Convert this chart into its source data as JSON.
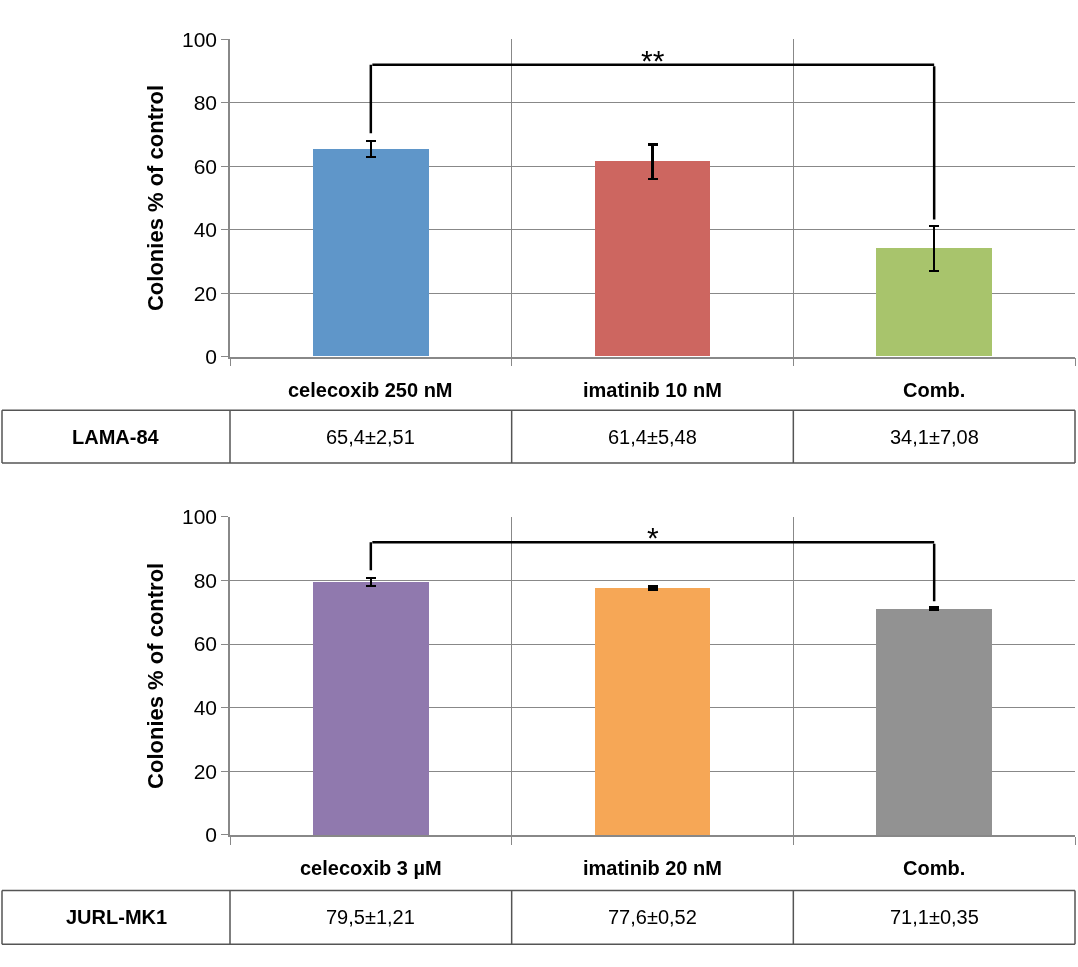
{
  "chart_data": [
    {
      "type": "bar",
      "ylabel": "Colonies % of control",
      "categories": [
        "celecoxib 250 nM",
        "imatinib 10 nM",
        "Comb."
      ],
      "ylim": [
        0,
        100
      ],
      "yticks": [
        0,
        20,
        40,
        60,
        80,
        100
      ],
      "grid": true,
      "series": [
        {
          "name": "LAMA-84",
          "colors": [
            "#5f96c9",
            "#cd6660",
            "#a8c46c"
          ],
          "values": [
            65.4,
            61.4,
            34.1
          ],
          "errors": [
            2.51,
            5.48,
            7.08
          ],
          "value_labels": [
            "65,4±2,51",
            "61,4±5,48",
            "34,1±7,08"
          ]
        }
      ],
      "annotations": [
        "**"
      ]
    },
    {
      "type": "bar",
      "ylabel": "Colonies % of control",
      "categories": [
        "celecoxib 3 µM",
        "imatinib 20 nM",
        "Comb."
      ],
      "ylim": [
        0,
        100
      ],
      "yticks": [
        0,
        20,
        40,
        60,
        80,
        100
      ],
      "grid": true,
      "series": [
        {
          "name": "JURL-MK1",
          "colors": [
            "#9079ae",
            "#f6a756",
            "#929292"
          ],
          "values": [
            79.5,
            77.6,
            71.1
          ],
          "errors": [
            1.21,
            0.52,
            0.35
          ],
          "value_labels": [
            "79,5±1,21",
            "77,6±0,52",
            "71,1±0,35"
          ]
        }
      ],
      "annotations": [
        "*"
      ]
    }
  ]
}
